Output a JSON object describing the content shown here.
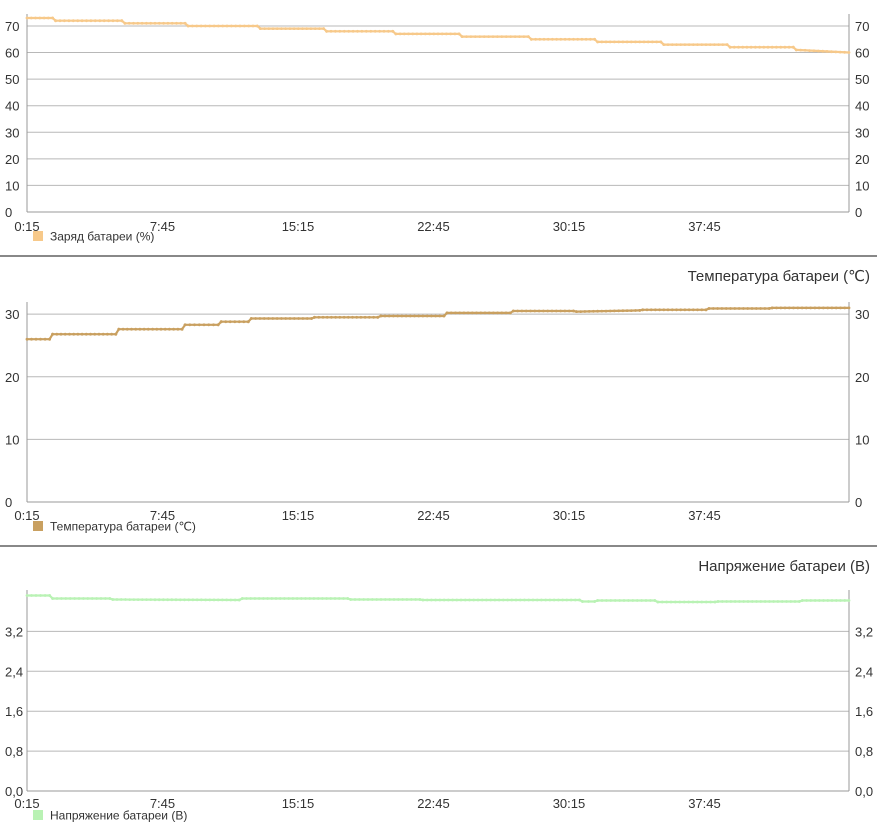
{
  "chart_data": [
    {
      "type": "line",
      "title": "",
      "xlabel": "",
      "ylabel": "",
      "categories": [
        "0:15",
        "7:45",
        "15:15",
        "22:45",
        "30:15",
        "37:45"
      ],
      "x_range_minutes": [
        15,
        2745
      ],
      "ylim": [
        0,
        73
      ],
      "yticks": [
        "0",
        "10",
        "20",
        "30",
        "40",
        "50",
        "60",
        "70"
      ],
      "ytick_values": [
        0,
        10,
        20,
        30,
        40,
        50,
        60,
        70
      ],
      "color": "#f7c98a",
      "legend": "bottom-left",
      "series": [
        {
          "name": "Заряд батареи (%)",
          "x": [
            15,
            100,
            110,
            330,
            340,
            540,
            550,
            780,
            790,
            1000,
            1010,
            1230,
            1240,
            1450,
            1460,
            1680,
            1690,
            1900,
            1910,
            2120,
            2130,
            2340,
            2350,
            2560,
            2570,
            2745
          ],
          "values": [
            73,
            73,
            72,
            72,
            71,
            71,
            70,
            70,
            69,
            69,
            68,
            68,
            67,
            67,
            66,
            66,
            65,
            65,
            64,
            64,
            63,
            63,
            62,
            62,
            61,
            60
          ]
        }
      ]
    },
    {
      "type": "line",
      "title": "Температура батареи (℃)",
      "xlabel": "",
      "ylabel": "",
      "categories": [
        "0:15",
        "7:45",
        "15:15",
        "22:45",
        "30:15",
        "37:45"
      ],
      "x_range_minutes": [
        15,
        2745
      ],
      "ylim": [
        0,
        31.3
      ],
      "yticks": [
        "0",
        "10",
        "20",
        "30"
      ],
      "ytick_values": [
        0,
        10,
        20,
        30
      ],
      "color": "#c9a060",
      "legend": "bottom-left",
      "series": [
        {
          "name": "Температура батареи (℃)",
          "x": [
            15,
            90,
            100,
            310,
            320,
            530,
            540,
            650,
            660,
            750,
            760,
            960,
            970,
            1180,
            1190,
            1400,
            1410,
            1620,
            1630,
            1830,
            1840,
            2050,
            2060,
            2270,
            2280,
            2480,
            2490,
            2745
          ],
          "values": [
            26.0,
            26.0,
            26.8,
            26.8,
            27.6,
            27.6,
            28.3,
            28.3,
            28.8,
            28.8,
            29.3,
            29.3,
            29.5,
            29.5,
            29.7,
            29.7,
            30.2,
            30.2,
            30.5,
            30.5,
            30.4,
            30.6,
            30.7,
            30.7,
            30.9,
            30.9,
            31.0,
            31.0
          ]
        }
      ]
    },
    {
      "type": "line",
      "title": "Напряжение батареи (В)",
      "xlabel": "",
      "ylabel": "",
      "categories": [
        "0:15",
        "7:45",
        "15:15",
        "22:45",
        "30:15",
        "37:45"
      ],
      "x_range_minutes": [
        15,
        2745
      ],
      "ylim": [
        0,
        3.95
      ],
      "yticks": [
        "0,0",
        "0,8",
        "1,6",
        "2,4",
        "3,2"
      ],
      "ytick_values": [
        0,
        0.8,
        1.6,
        2.4,
        3.2
      ],
      "color": "#b9f2b4",
      "legend": "bottom-left",
      "series": [
        {
          "name": "Напряжение батареи (В)",
          "x": [
            15,
            90,
            100,
            290,
            300,
            720,
            730,
            1080,
            1090,
            1320,
            1330,
            1850,
            1860,
            1900,
            1910,
            2100,
            2110,
            2300,
            2310,
            2580,
            2590,
            2745
          ],
          "values": [
            3.92,
            3.92,
            3.86,
            3.86,
            3.84,
            3.83,
            3.86,
            3.86,
            3.84,
            3.84,
            3.83,
            3.83,
            3.8,
            3.8,
            3.82,
            3.82,
            3.79,
            3.79,
            3.8,
            3.8,
            3.82,
            3.82
          ]
        }
      ]
    }
  ]
}
